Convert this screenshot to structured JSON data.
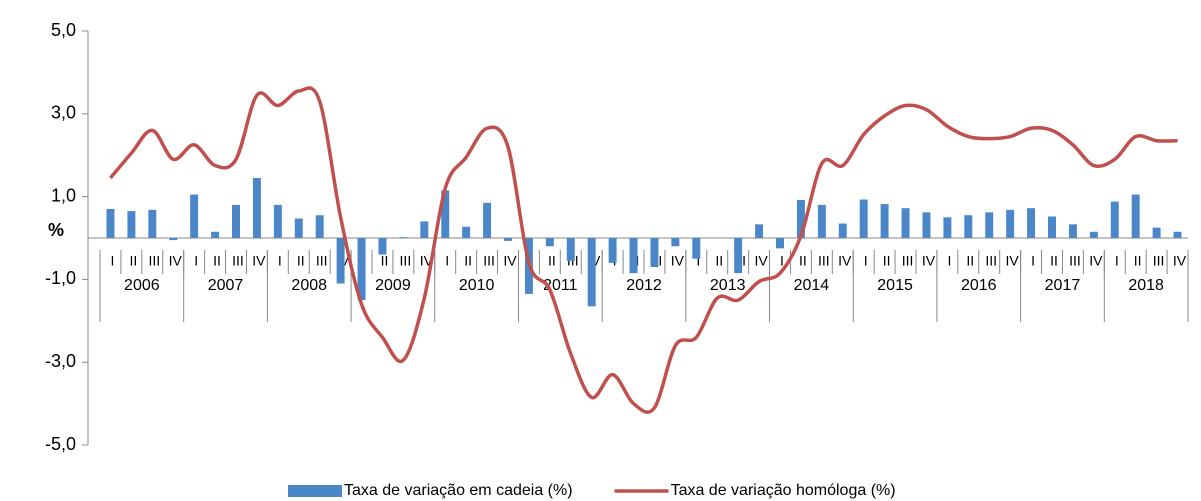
{
  "chart_data": {
    "type": "bar+line",
    "y_label": "%",
    "years": [
      "2006",
      "2007",
      "2008",
      "2009",
      "2010",
      "2011",
      "2012",
      "2013",
      "2014",
      "2015",
      "2016",
      "2017",
      "2018"
    ],
    "categories": [
      "I",
      "II",
      "III",
      "IV",
      "I",
      "II",
      "III",
      "IV",
      "I",
      "II",
      "III",
      "IV",
      "I",
      "II",
      "III",
      "IV",
      "I",
      "II",
      "III",
      "IV",
      "I",
      "II",
      "III",
      "IV",
      "I",
      "II",
      "III",
      "IV",
      "I",
      "II",
      "III",
      "IV",
      "I",
      "II",
      "III",
      "IV",
      "I",
      "II",
      "III",
      "IV",
      "I",
      "II",
      "III",
      "IV",
      "I",
      "II",
      "III",
      "IV",
      "I",
      "II",
      "III",
      "IV"
    ],
    "series": [
      {
        "name": "Taxa de variação em cadeia (%)",
        "type": "bar",
        "color": "#4a86c8",
        "values": [
          0.7,
          0.65,
          0.68,
          -0.05,
          1.05,
          0.15,
          0.8,
          1.45,
          0.8,
          0.47,
          0.55,
          -1.1,
          -1.5,
          -0.4,
          0.02,
          0.4,
          1.15,
          0.27,
          0.85,
          -0.07,
          -1.35,
          -0.2,
          -0.55,
          -1.65,
          -0.6,
          -0.85,
          -0.7,
          -0.2,
          -0.5,
          0.0,
          -0.85,
          0.33,
          -0.25,
          0.92,
          0.8,
          0.35,
          0.93,
          0.82,
          0.72,
          0.62,
          0.5,
          0.55,
          0.62,
          0.68,
          0.72,
          0.52,
          0.33,
          0.15,
          0.88,
          1.05,
          0.25,
          0.15
        ]
      },
      {
        "name": "Taxa de variação homóloga (%)",
        "type": "line",
        "color": "#c0504d",
        "values": [
          1.45,
          2.05,
          2.6,
          1.9,
          2.25,
          1.75,
          1.9,
          3.45,
          3.2,
          3.55,
          3.3,
          0.5,
          -1.6,
          -2.4,
          -2.95,
          -1.45,
          1.2,
          1.95,
          2.65,
          2.2,
          -0.6,
          -1.25,
          -2.8,
          -3.85,
          -3.3,
          -4.0,
          -4.1,
          -2.6,
          -2.4,
          -1.45,
          -1.5,
          -1.05,
          -0.85,
          0.05,
          1.8,
          1.75,
          2.5,
          2.95,
          3.2,
          3.1,
          2.7,
          2.45,
          2.4,
          2.45,
          2.65,
          2.6,
          2.25,
          1.75,
          1.9,
          2.45,
          2.35,
          2.35
        ]
      }
    ],
    "ylim": [
      -5,
      5
    ],
    "yticks": [
      {
        "value": -5,
        "label": "-5,0"
      },
      {
        "value": -3,
        "label": "-3,0"
      },
      {
        "value": -1,
        "label": "-1,0"
      },
      {
        "value": 1,
        "label": "1,0"
      },
      {
        "value": 3,
        "label": "3,0"
      },
      {
        "value": 5,
        "label": "5,0"
      }
    ],
    "legend": "bottom"
  }
}
